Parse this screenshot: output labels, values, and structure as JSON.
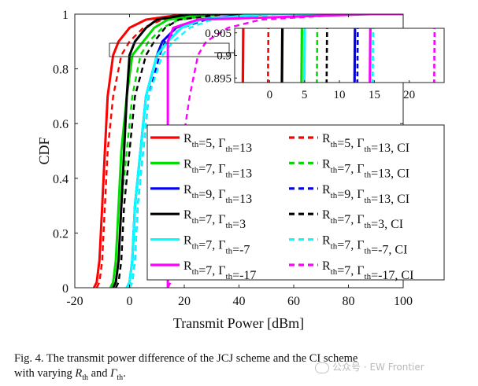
{
  "chart_data": {
    "type": "line",
    "ylabel": "CDF",
    "xlabel": "Transmit Power [dBm]",
    "xlim": [
      -20,
      100
    ],
    "ylim": [
      0,
      1
    ],
    "x_ticks": [
      "-20",
      "0",
      "20",
      "40",
      "60",
      "80",
      "100"
    ],
    "y_ticks": [
      "0",
      "0.2",
      "0.4",
      "0.6",
      "0.8",
      "1"
    ],
    "grid": false,
    "legend_placement": "inside right, lower half, two columns",
    "y_levels": [
      0,
      0.02,
      0.1,
      0.3,
      0.5,
      0.7,
      0.85,
      0.9,
      0.95,
      0.98,
      1
    ],
    "series": [
      {
        "name": "Rth=5, Γth=13",
        "name_parts": {
          "r": "5",
          "g": "13",
          "suffix": ""
        },
        "color": "#ff0000",
        "dash": false,
        "x": [
          -13,
          -12,
          -11,
          -10,
          -9,
          -8,
          -6,
          -4,
          0,
          6,
          20
        ]
      },
      {
        "name": "Rth=5, Γth=13, CI",
        "name_parts": {
          "r": "5",
          "g": "13",
          "suffix": ", CI"
        },
        "color": "#ff0000",
        "dash": true,
        "x": [
          -12,
          -11,
          -10,
          -9,
          -8,
          -6,
          -3,
          0,
          5,
          12,
          28
        ]
      },
      {
        "name": "Rth=7, Γth=13",
        "name_parts": {
          "r": "7",
          "g": "13",
          "suffix": ""
        },
        "color": "#00dd00",
        "dash": false,
        "x": [
          -7,
          -6,
          -5,
          -4,
          -3,
          -1,
          1,
          5,
          9,
          14,
          28
        ]
      },
      {
        "name": "Rth=7, Γth=13, CI",
        "name_parts": {
          "r": "7",
          "g": "13",
          "suffix": ", CI"
        },
        "color": "#00dd00",
        "dash": true,
        "x": [
          -6,
          -5,
          -4,
          -3,
          -1,
          1,
          4,
          7,
          12,
          18,
          34
        ]
      },
      {
        "name": "Rth=9, Γth=13",
        "name_parts": {
          "r": "9",
          "g": "13",
          "suffix": ""
        },
        "color": "#0000ff",
        "dash": false,
        "x": [
          -1,
          0,
          1,
          2,
          4,
          6,
          10,
          12,
          17,
          25,
          46
        ]
      },
      {
        "name": "Rth=9, Γth=13, CI",
        "name_parts": {
          "r": "9",
          "g": "13",
          "suffix": ", CI"
        },
        "color": "#0000ff",
        "dash": true,
        "x": [
          0,
          1,
          2,
          3,
          5,
          7,
          11,
          13,
          19,
          28,
          50
        ]
      },
      {
        "name": "Rth=7, Γth=3",
        "name_parts": {
          "r": "7",
          "g": "3",
          "suffix": ""
        },
        "color": "#000000",
        "dash": false,
        "x": [
          -6,
          -5,
          -4,
          -3,
          -2,
          -1,
          0,
          2,
          6,
          10,
          22
        ]
      },
      {
        "name": "Rth=7, Γth=3, CI",
        "name_parts": {
          "r": "7",
          "g": "3",
          "suffix": ", CI"
        },
        "color": "#000000",
        "dash": true,
        "x": [
          -5,
          -4,
          -3,
          -2,
          0,
          2,
          6,
          9,
          13,
          18,
          35
        ]
      },
      {
        "name": "Rth=7, Γth=-7",
        "name_parts": {
          "r": "7",
          "g": "-7",
          "suffix": ""
        },
        "color": "#00ffff",
        "dash": false,
        "x": [
          -1,
          0,
          1,
          2,
          4,
          6,
          10,
          14,
          19,
          26,
          48
        ]
      },
      {
        "name": "Rth=7, Γth=-7, CI",
        "name_parts": {
          "r": "7",
          "g": "-7",
          "suffix": ", CI"
        },
        "color": "#00ffff",
        "dash": true,
        "x": [
          0,
          1,
          2,
          3,
          5,
          7,
          12,
          16,
          22,
          30,
          55
        ]
      },
      {
        "name": "Rth=7, Γth=-17",
        "name_parts": {
          "r": "7",
          "g": "-17",
          "suffix": ""
        },
        "color": "#ff00ff",
        "dash": false,
        "x": [
          14,
          14,
          14,
          14,
          14,
          14,
          14,
          14,
          16,
          25,
          88
        ]
      },
      {
        "name": "Rth=7, Γth=-17, CI",
        "name_parts": {
          "r": "7",
          "g": "-17",
          "suffix": ", CI"
        },
        "color": "#ff00ff",
        "dash": true,
        "x": [
          14,
          15,
          16,
          17,
          19,
          22,
          25,
          28,
          36,
          48,
          82
        ]
      }
    ],
    "inset": {
      "xlim": [
        -5,
        25
      ],
      "ylim": [
        0.894,
        0.906
      ],
      "x_ticks": [
        "0",
        "5",
        "10",
        "15",
        "20"
      ],
      "y_ticks": [
        "0.895",
        "0.9",
        "0.905"
      ],
      "crossings_at_0_9": [
        {
          "series": "Rth=5, Γth=13",
          "x": -3.8
        },
        {
          "series": "Rth=5, Γth=13, CI",
          "x": -0.2
        },
        {
          "series": "Rth=7, Γth=3",
          "x": 1.8
        },
        {
          "series": "Rth=7, Γth=13",
          "x": 4.6
        },
        {
          "series": "Rth=7, Γth=-7",
          "x": 5.0
        },
        {
          "series": "Rth=7, Γth=13, CI",
          "x": 6.8
        },
        {
          "series": "Rth=7, Γth=3, CI",
          "x": 8.2
        },
        {
          "series": "Rth=9, Γth=13",
          "x": 12.2
        },
        {
          "series": "Rth=9, Γth=13, CI",
          "x": 12.6
        },
        {
          "series": "Rth=7, Γth=-17",
          "x": 14.4
        },
        {
          "series": "Rth=7, Γth=-7, CI",
          "x": 14.8
        },
        {
          "series": "Rth=7, Γth=-17, CI",
          "x": 23.6
        }
      ]
    }
  },
  "caption": {
    "line1": "Fig. 4.  The transmit power difference of the JCJ scheme and the CI scheme",
    "line2_prefix": "with varying ",
    "sym_r": "R",
    "sub_th": "th",
    "line2_middle": " and ",
    "sym_g": "Γ",
    "line2_end": "."
  },
  "watermark": {
    "text": "公众号 · EW Frontier"
  }
}
